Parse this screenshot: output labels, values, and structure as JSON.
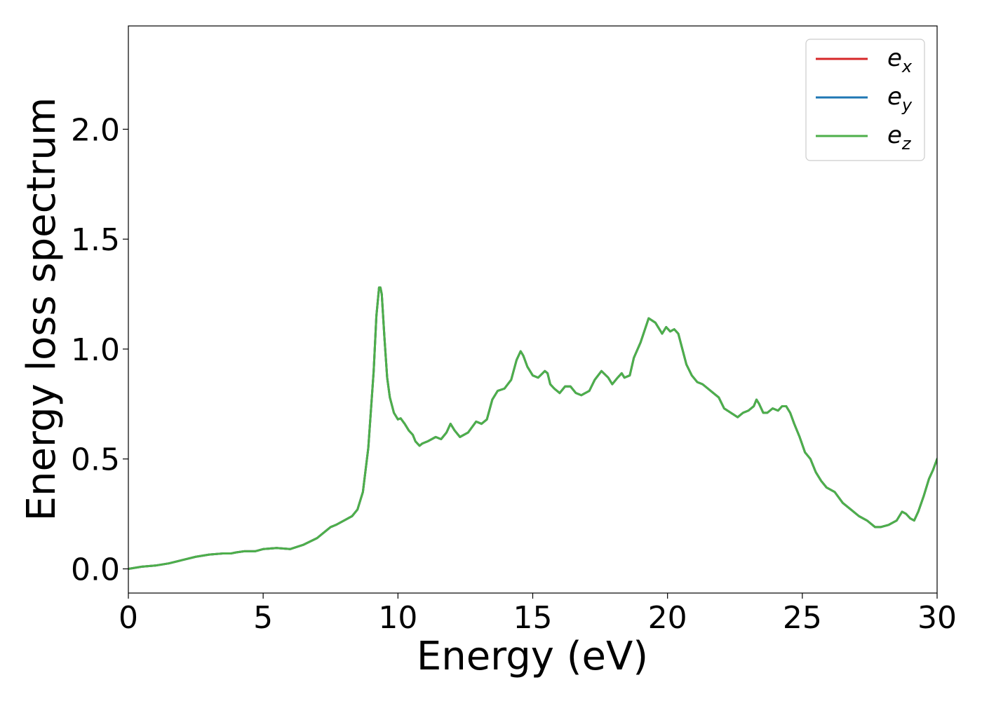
{
  "chart_data": {
    "type": "line",
    "xlabel": "Energy (eV)",
    "ylabel": "Energy loss spectrum",
    "xlim": [
      0,
      30
    ],
    "ylim": [
      -0.11,
      2.47
    ],
    "xticks": [
      0,
      5,
      10,
      15,
      20,
      25,
      30
    ],
    "xtick_labels": [
      "0",
      "5",
      "10",
      "15",
      "20",
      "25",
      "30"
    ],
    "yticks": [
      0.0,
      0.5,
      1.0,
      1.5,
      2.0
    ],
    "ytick_labels": [
      "0.0",
      "0.5",
      "1.0",
      "1.5",
      "2.0"
    ],
    "grid": false,
    "legend_position": "top-right",
    "legend": [
      {
        "base": "e",
        "sub": "x",
        "color": "#d62728"
      },
      {
        "base": "e",
        "sub": "y",
        "color": "#1f77b4"
      },
      {
        "base": "e",
        "sub": "z",
        "color": "#4daf4a"
      }
    ],
    "series": [
      {
        "name": "e_x",
        "color": "#d62728"
      },
      {
        "name": "e_y",
        "color": "#1f77b4"
      },
      {
        "name": "e_z",
        "color": "#4daf4a"
      }
    ],
    "x": [
      0,
      0.5,
      1,
      1.5,
      2,
      2.5,
      3,
      3.5,
      3.8,
      4,
      4.3,
      4.7,
      5,
      5.5,
      6,
      6.5,
      7,
      7.3,
      7.5,
      7.7,
      8,
      8.3,
      8.5,
      8.7,
      8.9,
      9.1,
      9.2,
      9.3,
      9.35,
      9.4,
      9.5,
      9.6,
      9.7,
      9.85,
      10,
      10.1,
      10.25,
      10.4,
      10.55,
      10.65,
      10.8,
      10.9,
      11.1,
      11.4,
      11.6,
      11.8,
      11.95,
      12.1,
      12.3,
      12.6,
      12.9,
      13.1,
      13.3,
      13.5,
      13.7,
      13.95,
      14.2,
      14.4,
      14.55,
      14.65,
      14.8,
      15,
      15.2,
      15.45,
      15.55,
      15.65,
      15.8,
      16,
      16.2,
      16.4,
      16.6,
      16.8,
      17.1,
      17.3,
      17.55,
      17.8,
      17.95,
      18.15,
      18.3,
      18.4,
      18.6,
      18.75,
      19,
      19.3,
      19.55,
      19.7,
      19.8,
      19.95,
      20.1,
      20.25,
      20.4,
      20.55,
      20.7,
      20.9,
      21.1,
      21.3,
      21.5,
      21.7,
      21.9,
      22.1,
      22.35,
      22.6,
      22.8,
      23,
      23.2,
      23.3,
      23.4,
      23.55,
      23.7,
      23.9,
      24.1,
      24.25,
      24.4,
      24.55,
      24.7,
      24.9,
      25.1,
      25.3,
      25.5,
      25.7,
      25.9,
      26.2,
      26.5,
      26.8,
      27.1,
      27.4,
      27.7,
      27.9,
      28.2,
      28.5,
      28.7,
      28.85,
      29,
      29.15,
      29.3,
      29.5,
      29.7,
      29.85,
      30
    ],
    "y": [
      0.0,
      0.01,
      0.015,
      0.025,
      0.04,
      0.055,
      0.065,
      0.07,
      0.07,
      0.075,
      0.08,
      0.08,
      0.09,
      0.095,
      0.09,
      0.11,
      0.14,
      0.17,
      0.19,
      0.2,
      0.22,
      0.24,
      0.27,
      0.35,
      0.55,
      0.9,
      1.15,
      1.28,
      1.28,
      1.25,
      1.05,
      0.87,
      0.78,
      0.71,
      0.68,
      0.685,
      0.66,
      0.63,
      0.61,
      0.58,
      0.56,
      0.57,
      0.58,
      0.6,
      0.59,
      0.62,
      0.66,
      0.63,
      0.6,
      0.62,
      0.67,
      0.66,
      0.68,
      0.77,
      0.81,
      0.82,
      0.86,
      0.95,
      0.99,
      0.97,
      0.92,
      0.88,
      0.87,
      0.9,
      0.89,
      0.84,
      0.82,
      0.8,
      0.83,
      0.83,
      0.8,
      0.79,
      0.81,
      0.86,
      0.9,
      0.87,
      0.84,
      0.87,
      0.89,
      0.87,
      0.88,
      0.96,
      1.03,
      1.14,
      1.12,
      1.09,
      1.07,
      1.1,
      1.08,
      1.09,
      1.07,
      1.0,
      0.93,
      0.88,
      0.85,
      0.84,
      0.82,
      0.8,
      0.78,
      0.73,
      0.71,
      0.69,
      0.71,
      0.72,
      0.74,
      0.77,
      0.75,
      0.71,
      0.71,
      0.73,
      0.72,
      0.74,
      0.74,
      0.71,
      0.66,
      0.6,
      0.53,
      0.5,
      0.44,
      0.4,
      0.37,
      0.35,
      0.3,
      0.27,
      0.24,
      0.22,
      0.19,
      0.19,
      0.2,
      0.22,
      0.26,
      0.25,
      0.23,
      0.22,
      0.26,
      0.33,
      0.41,
      0.45,
      0.5
    ]
  }
}
